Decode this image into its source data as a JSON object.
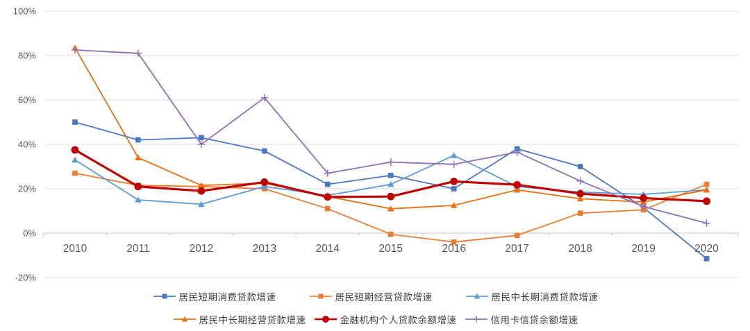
{
  "chart_data": {
    "type": "line",
    "title": "",
    "xlabel": "",
    "ylabel": "",
    "x": [
      2010,
      2011,
      2012,
      2013,
      2014,
      2015,
      2016,
      2017,
      2018,
      2019,
      2020
    ],
    "y_ticks": [
      {
        "label": "100%",
        "value": 100
      },
      {
        "label": "80%",
        "value": 80
      },
      {
        "label": "60%",
        "value": 60
      },
      {
        "label": "40%",
        "value": 40
      },
      {
        "label": "20%",
        "value": 20
      },
      {
        "label": "0%",
        "value": 0
      },
      {
        "label": "-20%",
        "value": -20
      }
    ],
    "ylim": [
      -20,
      100
    ],
    "grid": true,
    "legend_position": "bottom",
    "series": [
      {
        "name": "居民短期消费贷款增速",
        "marker": "square",
        "color": "#4A77C4",
        "line_width": 1.8,
        "values": [
          50,
          42,
          43,
          37,
          22,
          26,
          20,
          38,
          30,
          11.5,
          -11.5
        ]
      },
      {
        "name": "居民短期经营贷款增速",
        "marker": "square",
        "color": "#ED7D31",
        "line_width": 1.8,
        "values": [
          27,
          21.5,
          21,
          20,
          11,
          -0.5,
          -4,
          -1,
          9,
          10.5,
          22
        ]
      },
      {
        "name": "居民中长期消费贷款增速",
        "marker": "triangle",
        "color": "#5B9BD5",
        "line_width": 1.8,
        "values": [
          33,
          15,
          13,
          21,
          17,
          22,
          35,
          21,
          18.5,
          17.5,
          19.5
        ]
      },
      {
        "name": "居民中长期经营贷款增速",
        "marker": "triangle",
        "color": "#E8700F",
        "line_width": 1.8,
        "values": [
          83.5,
          34,
          21.5,
          22.5,
          16.5,
          11,
          12.5,
          19.5,
          15.5,
          14,
          19.5
        ]
      },
      {
        "name": "金融机构个人贷款余额增速",
        "marker": "circle",
        "color": "#C00000",
        "line_width": 3.2,
        "values": [
          37.5,
          21,
          19,
          23,
          16.3,
          16.5,
          23.3,
          21.8,
          17.8,
          15.8,
          14.4
        ]
      },
      {
        "name": "信用卡信贷余额增速",
        "marker": "plus",
        "color": "#8E6FB8",
        "line_width": 1.8,
        "values": [
          82.5,
          81,
          40,
          61,
          27,
          32,
          31,
          36.5,
          23.5,
          12,
          4.5
        ]
      }
    ],
    "legend_rows": [
      [
        0,
        1,
        2
      ],
      [
        3,
        4,
        5
      ]
    ]
  },
  "colors": {
    "background": "#FFFFFF",
    "gridline": "#D9D9D9",
    "axis_line": "#C9C9C9",
    "tick_mark": "#C9C9C9",
    "axis_label": "#595959",
    "legend_text": "#404040"
  }
}
